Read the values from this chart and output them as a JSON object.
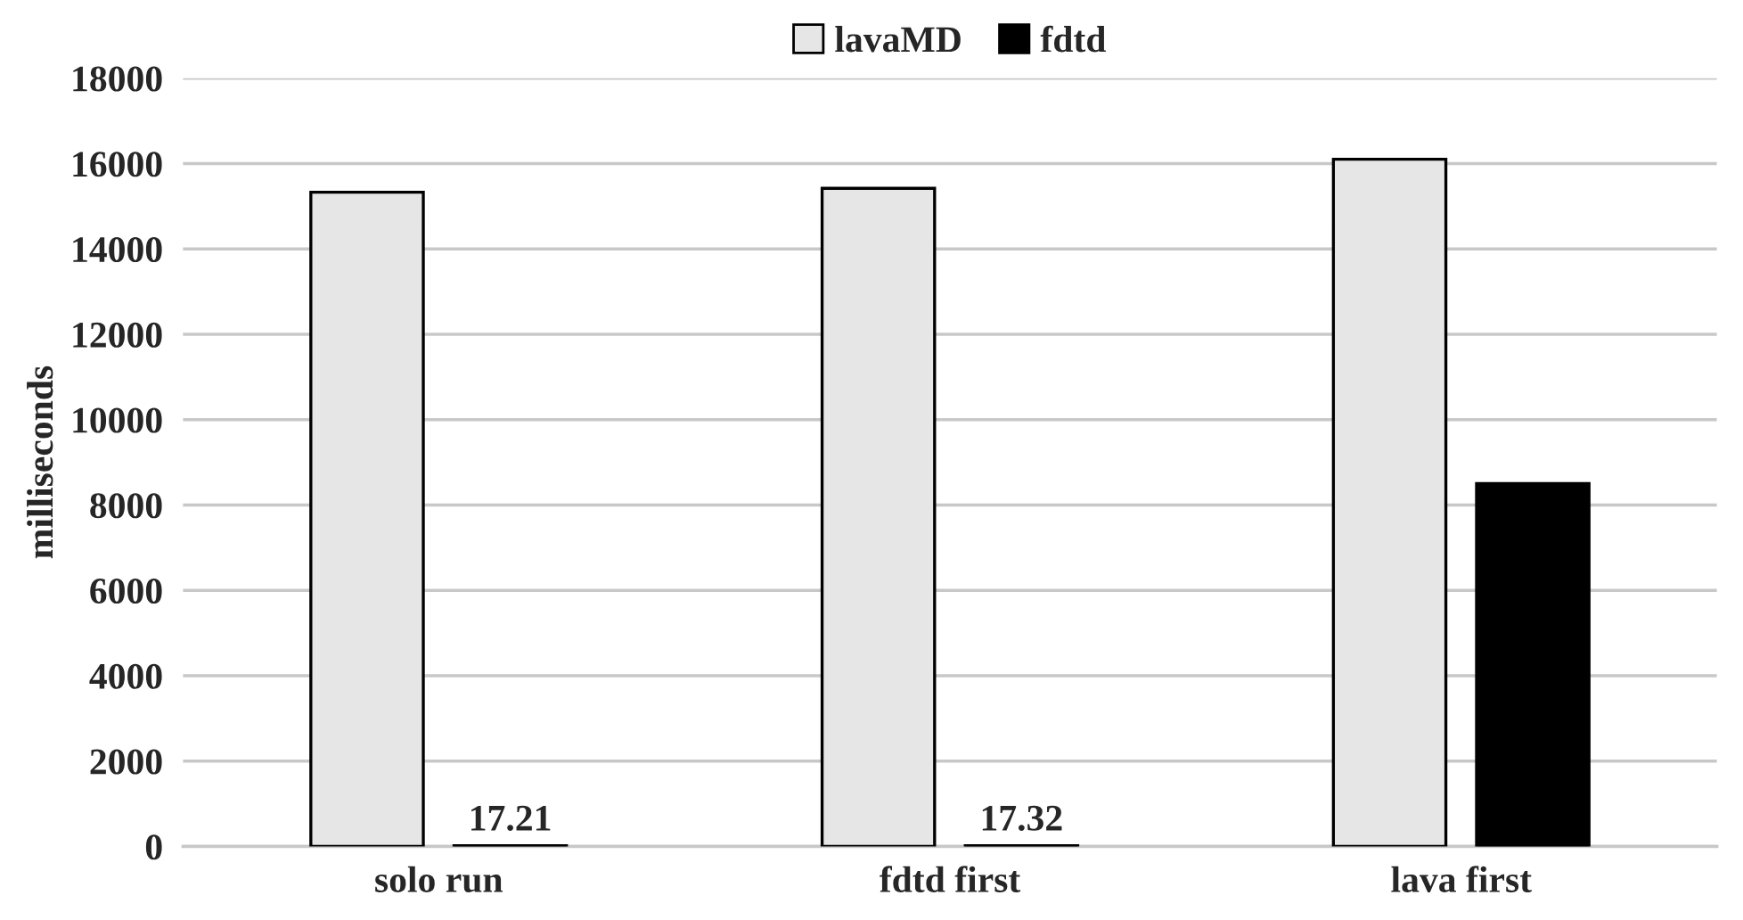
{
  "chart_data": {
    "type": "bar",
    "ylabel": "milliseconds",
    "categories": [
      "solo run",
      "fdtd first",
      "lava first"
    ],
    "series": [
      {
        "name": "lavaMD",
        "color": "#e6e6e6",
        "values": [
          15330,
          15420,
          16100
        ]
      },
      {
        "name": "fdtd",
        "color": "#000000",
        "values": [
          17.21,
          17.32,
          8500
        ],
        "value_labels": [
          "17.21",
          "17.32",
          null
        ]
      }
    ],
    "ylim": [
      0,
      18000
    ],
    "yticks": [
      0,
      2000,
      4000,
      6000,
      8000,
      10000,
      12000,
      14000,
      16000,
      18000
    ],
    "grid": "y",
    "legend": "top"
  }
}
